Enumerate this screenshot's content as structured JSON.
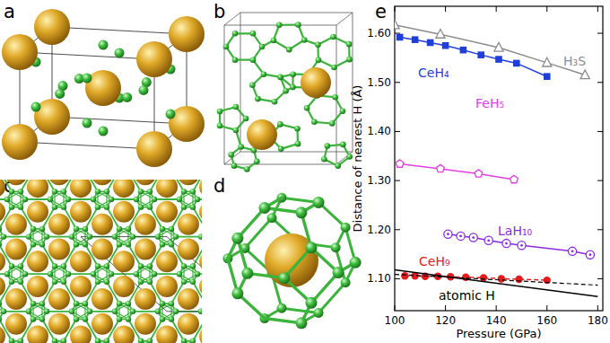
{
  "panels": [
    {
      "label": "a"
    },
    {
      "label": "b"
    },
    {
      "label": "c"
    },
    {
      "label": "d"
    },
    {
      "label": "e"
    }
  ],
  "chart_data": {
    "type": "line",
    "x_label": "Pressure (GPa)",
    "y_label": "Distance of nearest H (Å)",
    "xlim": [
      100,
      182
    ],
    "xticks": [
      100,
      120,
      140,
      160,
      180
    ],
    "ylim": [
      1.035,
      1.655
    ],
    "yticks": [
      {
        "value": 1.1,
        "label": "1.10"
      },
      {
        "value": 1.2,
        "label": "1.20"
      },
      {
        "value": 1.3,
        "label": "1.30"
      },
      {
        "value": 1.4,
        "label": "1.40"
      },
      {
        "value": 1.5,
        "label": "1.50"
      },
      {
        "value": 1.6,
        "label": "1.60"
      }
    ],
    "grid": false,
    "series": [
      {
        "name": "H₃S",
        "color": "#8c8c8c",
        "marker": "triangle-open",
        "line_style": "solid",
        "x": [
          100,
          118,
          141,
          160,
          175
        ],
        "values": [
          1.617,
          1.598,
          1.571,
          1.54,
          1.515
        ]
      },
      {
        "name": "CeH₄",
        "color": "#1f3fd8",
        "marker": "square",
        "line_style": "solid",
        "x": [
          102,
          108,
          114,
          120,
          127,
          134,
          141,
          148,
          160
        ],
        "values": [
          1.592,
          1.587,
          1.581,
          1.575,
          1.566,
          1.556,
          1.547,
          1.539,
          1.512
        ]
      },
      {
        "name": "FeH₅",
        "color": "#e040e0",
        "marker": "pentagon-open",
        "line_style": "solid",
        "x": [
          102,
          118,
          133,
          147
        ],
        "values": [
          1.334,
          1.324,
          1.314,
          1.302
        ]
      },
      {
        "name": "LaH₁₀",
        "color": "#8a2be2",
        "marker": "circle-dot-open",
        "line_style": "solid",
        "x": [
          121,
          126,
          131,
          137,
          144,
          150,
          170,
          177
        ],
        "values": [
          1.191,
          1.187,
          1.184,
          1.178,
          1.172,
          1.168,
          1.156,
          1.149
        ]
      },
      {
        "name": "CeH₉",
        "color": "#e51b1b",
        "marker": "circle",
        "line_style": "dashed",
        "x": [
          104,
          108,
          112,
          117,
          122,
          128,
          135,
          142,
          149,
          160
        ],
        "values": [
          1.106,
          1.106,
          1.105,
          1.105,
          1.104,
          1.103,
          1.102,
          1.1,
          1.099,
          1.097
        ]
      },
      {
        "color": "#000000",
        "marker": "none",
        "line_style": "dashed",
        "x": [
          100,
          180
        ],
        "values": [
          1.109,
          1.087
        ]
      },
      {
        "name": "atomic H",
        "color": "#000000",
        "marker": "none",
        "line_style": "solid",
        "x": [
          100,
          180
        ],
        "values": [
          1.118,
          1.064
        ]
      }
    ]
  }
}
